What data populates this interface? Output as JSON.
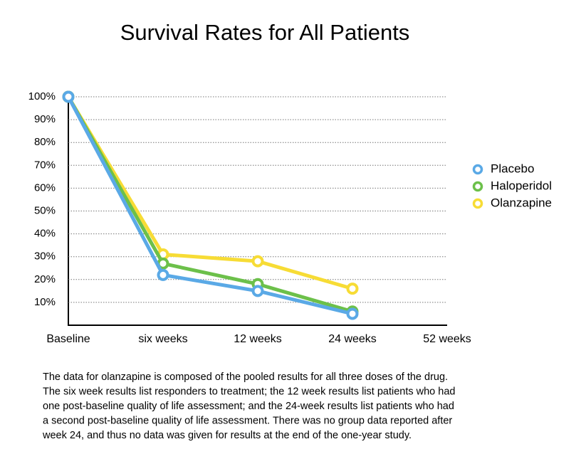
{
  "chart_data": {
    "type": "line",
    "title": "Survival Rates for All Patients",
    "categories": [
      "Baseline",
      "six weeks",
      "12 weeks",
      "24 weeks",
      "52 weeks"
    ],
    "series": [
      {
        "name": "Placebo",
        "color": "#5aa9e6",
        "values": [
          100,
          22,
          15,
          5,
          null
        ]
      },
      {
        "name": "Haloperidol",
        "color": "#6cc04a",
        "values": [
          100,
          27,
          18,
          6,
          null
        ]
      },
      {
        "name": "Olanzapine",
        "color": "#f7dc35",
        "values": [
          100,
          31,
          28,
          16,
          null
        ]
      }
    ],
    "ylim": [
      0,
      100
    ],
    "yticks": [
      {
        "value": 10,
        "label": "10%"
      },
      {
        "value": 20,
        "label": "20%"
      },
      {
        "value": 30,
        "label": "30%"
      },
      {
        "value": 40,
        "label": "40%"
      },
      {
        "value": 50,
        "label": "50%"
      },
      {
        "value": 60,
        "label": "60%"
      },
      {
        "value": 70,
        "label": "70%"
      },
      {
        "value": 80,
        "label": "80%"
      },
      {
        "value": 90,
        "label": "90%"
      },
      {
        "value": 100,
        "label": "100%"
      }
    ],
    "grid": true,
    "legend": "right",
    "note": [
      "The data for olanzapine is composed of the pooled results for all three doses of the drug.",
      "The six week results list responders to treatment; the 12 week results list patients who had",
      "one post-baseline quality of life assessment; and the 24-week results list patients who had",
      "a second post-baseline quality of life assessment. There was no group data reported after",
      "week 24, and thus no data was given for results at the end of the one-year study."
    ]
  }
}
